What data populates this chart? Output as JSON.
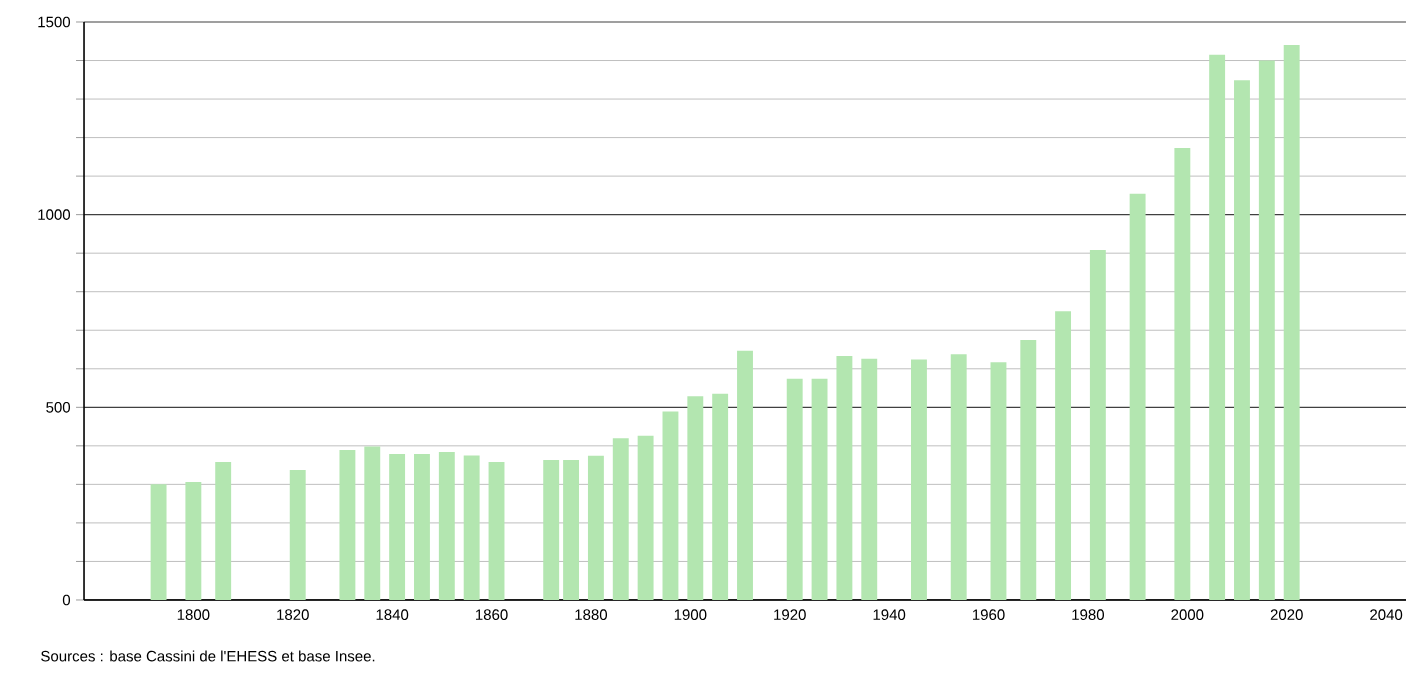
{
  "chart_data": {
    "type": "bar",
    "color": "#b3e6b0",
    "grid": "y",
    "x": [
      1793,
      1800,
      1806,
      1821,
      1831,
      1836,
      1841,
      1846,
      1851,
      1856,
      1861,
      1872,
      1876,
      1881,
      1886,
      1891,
      1896,
      1901,
      1906,
      1911,
      1921,
      1926,
      1931,
      1936,
      1946,
      1954,
      1962,
      1968,
      1975,
      1982,
      1990,
      1999,
      2006,
      2011,
      2016,
      2021
    ],
    "values": [
      300,
      306,
      358,
      337,
      389,
      398,
      379,
      379,
      384,
      375,
      358,
      363,
      363,
      374,
      420,
      426,
      489,
      529,
      535,
      647,
      574,
      574,
      633,
      626,
      624,
      638,
      617,
      675,
      749,
      908,
      1054,
      1173,
      1415,
      1349,
      1400,
      1440
    ],
    "xlim": [
      1778,
      2044
    ],
    "ylim": [
      0,
      1500
    ],
    "xticks": [
      1800,
      1820,
      1840,
      1860,
      1880,
      1900,
      1920,
      1940,
      1960,
      1980,
      2000,
      2020,
      2040
    ],
    "yticks": [
      0,
      {
        "value": 100,
        "label": null
      },
      {
        "value": 200,
        "label": null
      },
      {
        "value": 300,
        "label": null
      },
      {
        "value": 400,
        "label": null
      },
      500,
      {
        "value": 600,
        "label": null
      },
      {
        "value": 700,
        "label": null
      },
      {
        "value": 800,
        "label": null
      },
      {
        "value": 900,
        "label": null
      },
      1000,
      {
        "value": 1100,
        "label": null
      },
      {
        "value": 1200,
        "label": null
      },
      {
        "value": 1300,
        "label": null
      },
      {
        "value": 1400,
        "label": null
      },
      1500
    ],
    "annotations": [
      "Sources : base Cassini de l'EHESS et base Insee."
    ]
  }
}
